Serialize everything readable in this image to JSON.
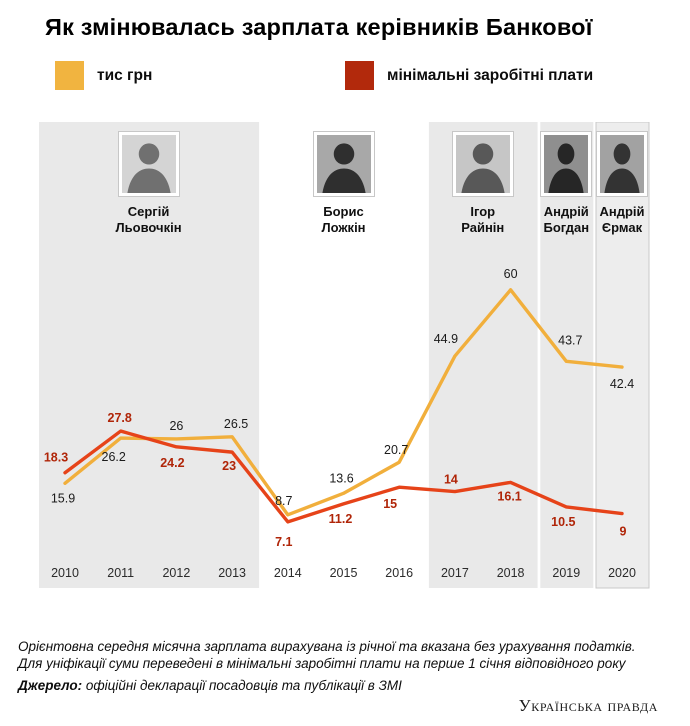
{
  "header": {
    "title": "Як змінювалась зарплата керівників Банкової"
  },
  "legend": [
    {
      "label": "тис грн",
      "color": "#F1B440"
    },
    {
      "label": "мінімальні заробітні плати",
      "color": "#B2290C"
    }
  ],
  "chart_data": {
    "type": "line",
    "title": "Як змінювалась зарплата керівників Банкової",
    "x": [
      "2010",
      "2011",
      "2012",
      "2013",
      "2014",
      "2015",
      "2016",
      "2017",
      "2018",
      "2019",
      "2020"
    ],
    "ylim": [
      0,
      65
    ],
    "grid": false,
    "legend_position": "top",
    "series": [
      {
        "name": "тис грн",
        "color": "#F1AF3C",
        "label_color": "#1b1b1b",
        "label_bold": false,
        "values": [
          15.9,
          26.2,
          26,
          26.5,
          8.7,
          13.6,
          20.7,
          44.9,
          60,
          43.7,
          42.4
        ],
        "labels": [
          "15.9",
          "26.2",
          "26",
          "26.5",
          "8.7",
          "13.6",
          "20.7",
          "44.9",
          "60",
          "43.7",
          "42.4"
        ],
        "label_offsets": [
          [
            -2,
            19
          ],
          [
            -7,
            23
          ],
          [
            0,
            -9
          ],
          [
            4,
            -9
          ],
          [
            -4,
            -10
          ],
          [
            -2,
            -11
          ],
          [
            -3,
            -8
          ],
          [
            -9,
            -13
          ],
          [
            0,
            -12
          ],
          [
            4,
            -17
          ],
          [
            0,
            21
          ]
        ]
      },
      {
        "name": "мінімальні заробітні плати",
        "color": "#E64319",
        "label_color": "#B02508",
        "label_bold": true,
        "values": [
          18.3,
          27.8,
          24.2,
          23,
          7.1,
          11.2,
          15,
          14,
          16.1,
          10.5,
          9
        ],
        "labels": [
          "18.3",
          "27.8",
          "24.2",
          "23",
          "7.1",
          "11.2",
          "15",
          "14",
          "16.1",
          "10.5",
          "9"
        ],
        "label_offsets": [
          [
            -9,
            -11
          ],
          [
            -1,
            -9
          ],
          [
            -4,
            20
          ],
          [
            -3,
            18
          ],
          [
            -4,
            24
          ],
          [
            -3,
            19
          ],
          [
            -9,
            21
          ],
          [
            -4,
            -8
          ],
          [
            -1,
            18
          ],
          [
            -3,
            19
          ],
          [
            1,
            22
          ]
        ]
      }
    ],
    "groups": [
      {
        "name_lines": [
          "Сергій",
          "Льовочкін"
        ],
        "from_index": 0,
        "to_index": 3,
        "band": true,
        "highlight": false
      },
      {
        "name_lines": [
          "Борис",
          "Ложкін"
        ],
        "from_index": 4,
        "to_index": 6,
        "band": false,
        "highlight": false
      },
      {
        "name_lines": [
          "Ігор",
          "Райнін"
        ],
        "from_index": 7,
        "to_index": 8,
        "band": true,
        "highlight": false
      },
      {
        "name_lines": [
          "Андрій",
          "Богдан"
        ],
        "from_index": 9,
        "to_index": 9,
        "band": true,
        "highlight": false
      },
      {
        "name_lines": [
          "Андрій",
          "Єрмак"
        ],
        "from_index": 10,
        "to_index": 10,
        "band": true,
        "highlight": true
      }
    ]
  },
  "footnote": {
    "line1": "Орієнтовна середня місячна зарплата вирахувана із річної та вказана без урахування податків.",
    "line2": "Для уніфікації суми переведені в мінімальні заробітні плати на перше 1 січня відповідного року"
  },
  "source": {
    "label": "Джерело:",
    "text": " офіційні декларації посадовців та публікації в ЗМІ"
  },
  "logo": {
    "text": "Українська правда"
  }
}
